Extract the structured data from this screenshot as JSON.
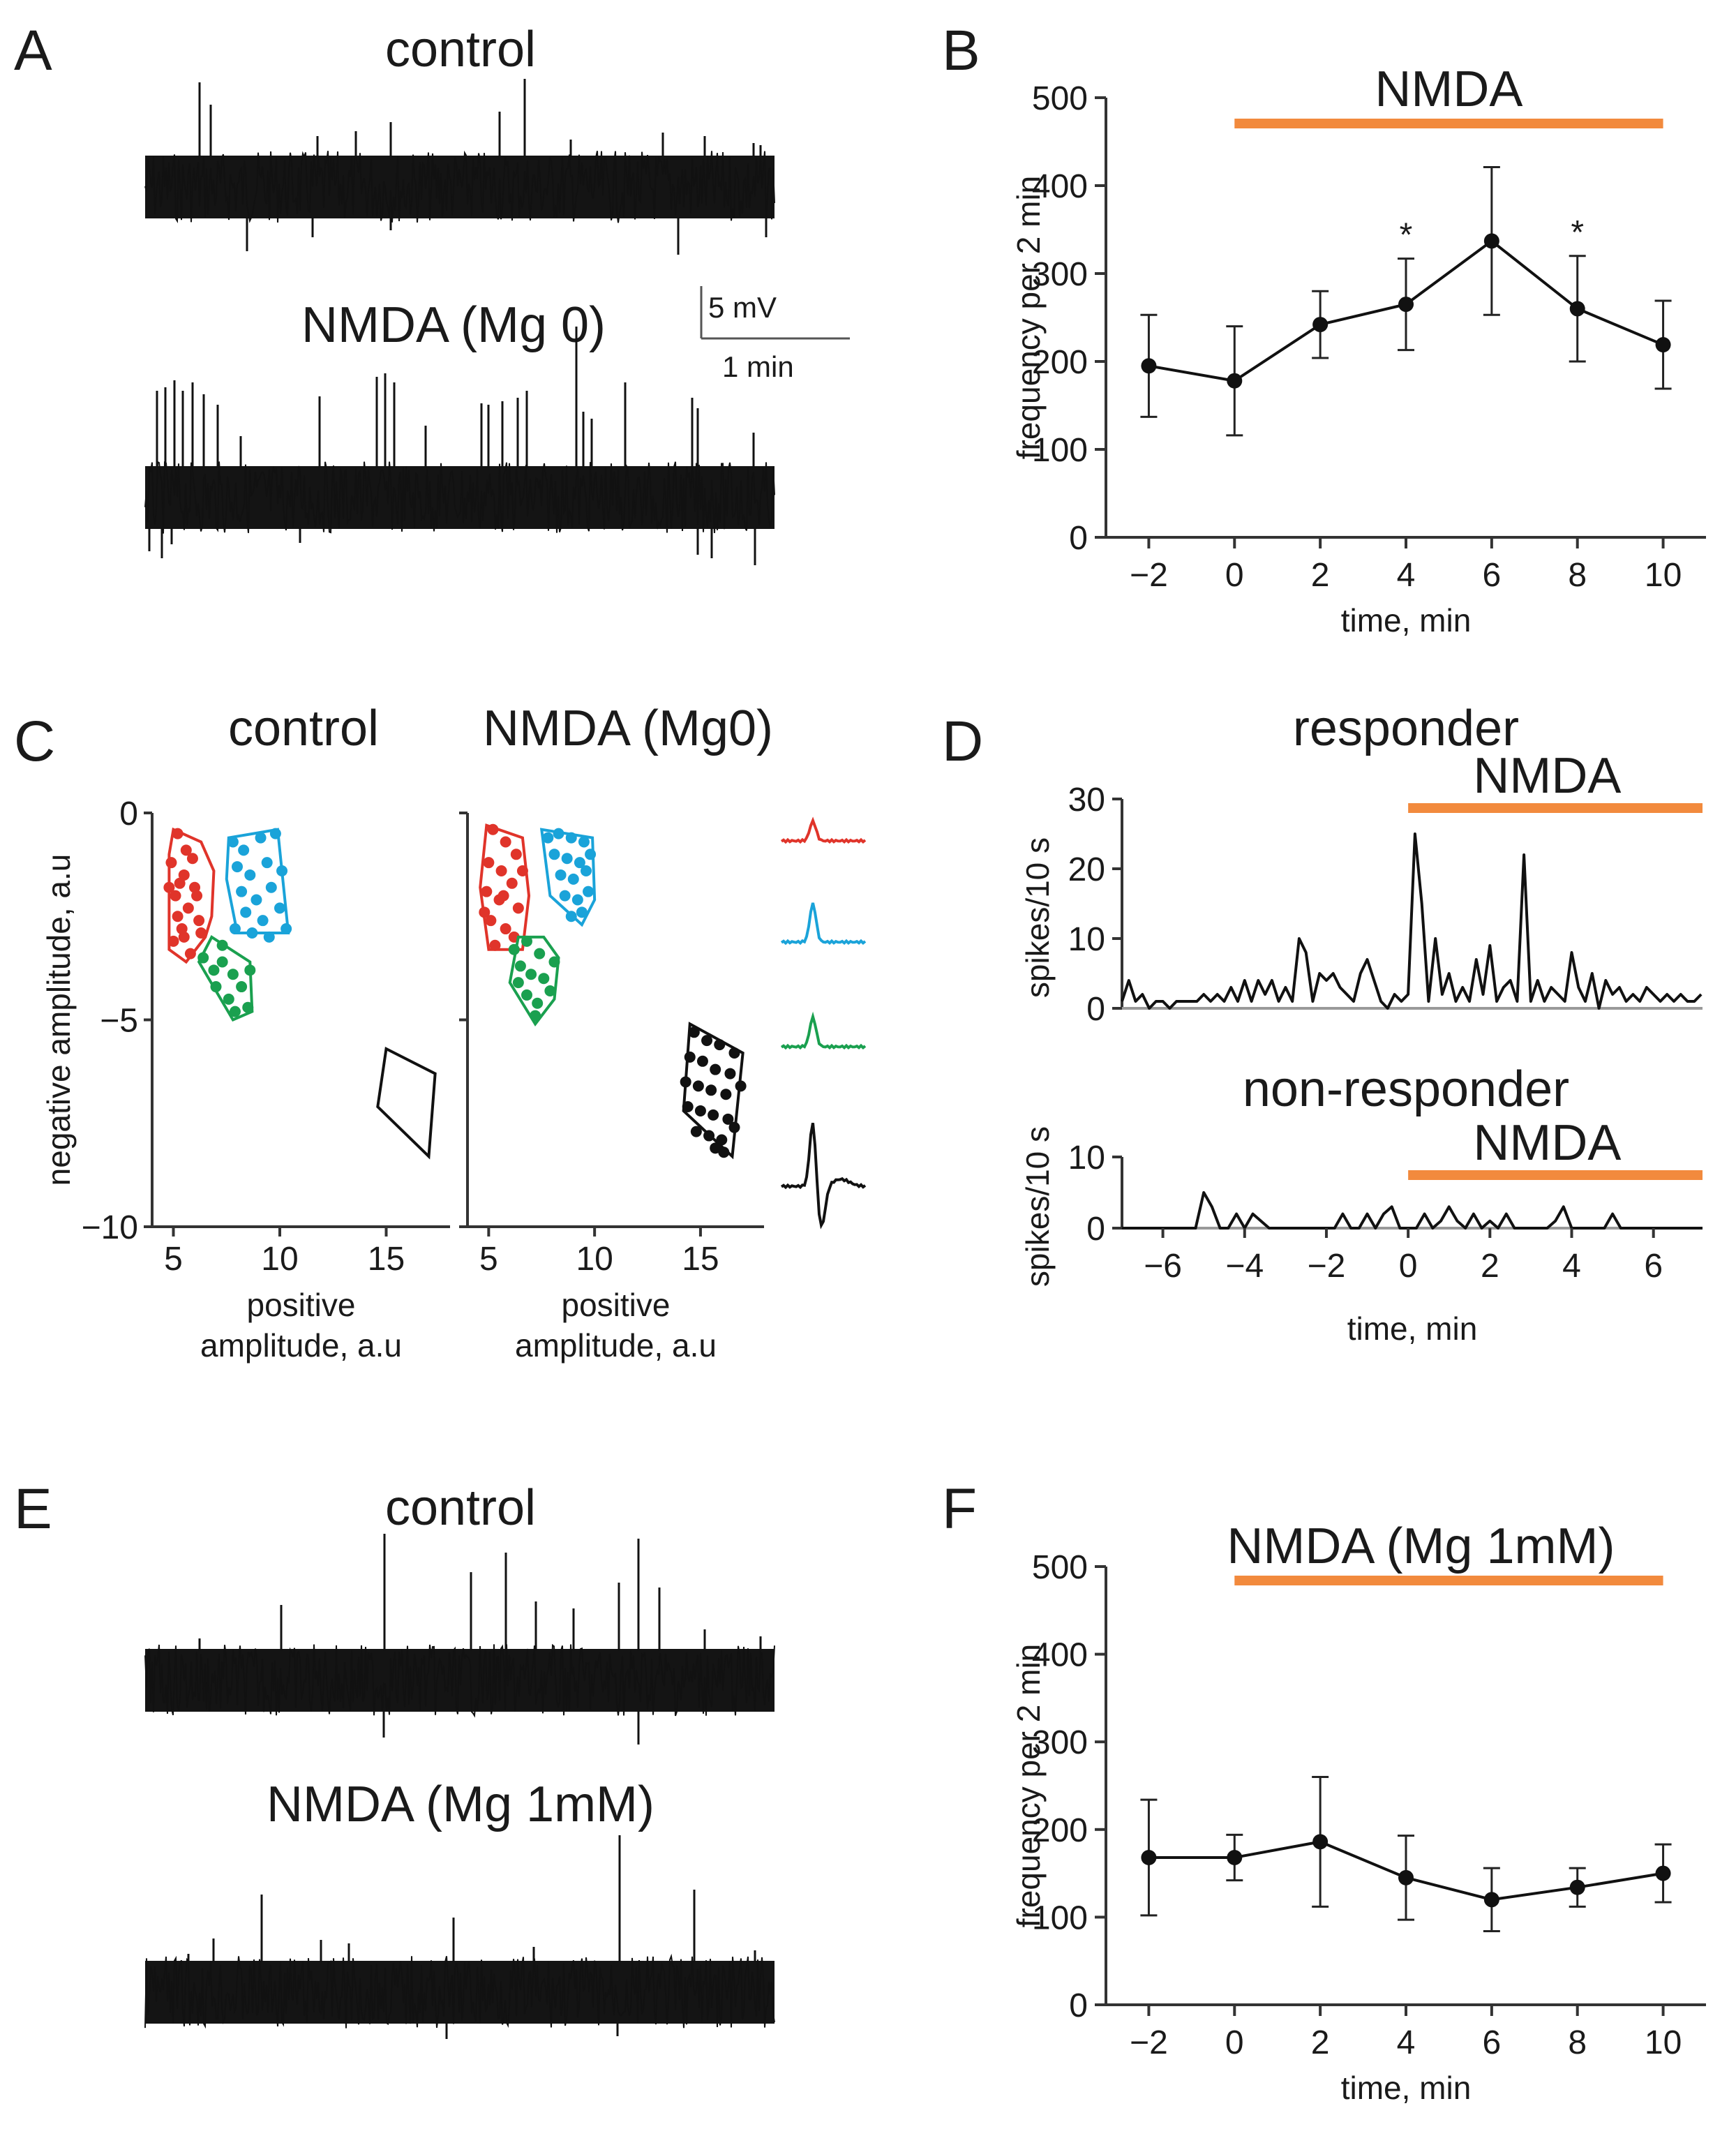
{
  "panels": {
    "A": {
      "letter": "A",
      "control_label": "control",
      "nmda_label": "NMDA (Mg 0)",
      "scale_v": "5 mV",
      "scale_t": "1 min"
    },
    "B": {
      "letter": "B"
    },
    "C": {
      "letter": "C",
      "control_label": "control",
      "nmda_label": "NMDA (Mg0)"
    },
    "D": {
      "letter": "D"
    },
    "E": {
      "letter": "E",
      "control_label": "control",
      "nmda_label": "NMDA (Mg 1mM)"
    },
    "F": {
      "letter": "F"
    }
  },
  "colors": {
    "nmda_bar": "#f28a3d",
    "red": "#e0342a",
    "blue": "#1aa3d9",
    "green": "#1aa04f",
    "black": "#111111"
  },
  "chart_data": [
    {
      "id": "B",
      "type": "line",
      "title": "NMDA",
      "bar_label": "NMDA",
      "bar_range": [
        0,
        10
      ],
      "x": [
        -2,
        0,
        2,
        4,
        6,
        8,
        10
      ],
      "y": [
        195,
        178,
        242,
        265,
        337,
        260,
        219
      ],
      "err": [
        58,
        62,
        38,
        52,
        84,
        60,
        50
      ],
      "significant": [
        "",
        "",
        "",
        "*",
        "",
        "*",
        ""
      ],
      "xticks": [
        "−2",
        "0",
        "2",
        "4",
        "6",
        "8",
        "10"
      ],
      "yticks": [
        "0",
        "100",
        "200",
        "300",
        "400",
        "500"
      ],
      "xlim": [
        -3,
        11
      ],
      "ylim": [
        0,
        500
      ],
      "xlabel": "time, min",
      "ylabel": "frequency per 2 min"
    },
    {
      "id": "C-control",
      "type": "scatter",
      "title": "control",
      "xticks": [
        "5",
        "10",
        "15"
      ],
      "yticks": [
        "0",
        "−5",
        "−10"
      ],
      "xlim": [
        4,
        18
      ],
      "ylim": [
        -10,
        0
      ],
      "xlabel": "positive amplitude, a.u",
      "ylabel": "negative amplitude, a.u",
      "clusters": [
        {
          "name": "red",
          "color": "#e0342a",
          "points": [
            [
              5.2,
              -0.5
            ],
            [
              5.6,
              -0.9
            ],
            [
              4.9,
              -1.2
            ],
            [
              5.5,
              -1.5
            ],
            [
              6.0,
              -1.8
            ],
            [
              5.1,
              -2.0
            ],
            [
              5.7,
              -2.3
            ],
            [
              6.2,
              -2.6
            ],
            [
              5.4,
              -2.8
            ],
            [
              5.0,
              -3.1
            ],
            [
              5.8,
              -3.4
            ],
            [
              6.1,
              -2.0
            ],
            [
              5.3,
              -1.7
            ],
            [
              5.9,
              -1.1
            ],
            [
              6.3,
              -2.9
            ],
            [
              5.5,
              -3.0
            ],
            [
              5.2,
              -2.5
            ],
            [
              4.8,
              -1.8
            ]
          ],
          "hull": [
            [
              5.0,
              -0.4
            ],
            [
              6.3,
              -0.7
            ],
            [
              6.9,
              -1.4
            ],
            [
              6.8,
              -2.5
            ],
            [
              6.5,
              -3.0
            ],
            [
              5.6,
              -3.6
            ],
            [
              4.8,
              -3.3
            ],
            [
              4.8,
              -1.0
            ]
          ]
        },
        {
          "name": "blue",
          "color": "#1aa3d9",
          "points": [
            [
              7.8,
              -0.7
            ],
            [
              8.3,
              -0.9
            ],
            [
              9.1,
              -0.6
            ],
            [
              9.8,
              -0.5
            ],
            [
              8.0,
              -1.3
            ],
            [
              8.6,
              -1.5
            ],
            [
              9.4,
              -1.2
            ],
            [
              10.1,
              -1.4
            ],
            [
              8.2,
              -1.9
            ],
            [
              8.9,
              -2.1
            ],
            [
              9.6,
              -1.8
            ],
            [
              8.4,
              -2.4
            ],
            [
              9.2,
              -2.6
            ],
            [
              10.0,
              -2.3
            ],
            [
              7.9,
              -2.8
            ],
            [
              8.7,
              -2.9
            ],
            [
              9.5,
              -3.0
            ],
            [
              10.3,
              -2.8
            ]
          ],
          "hull": [
            [
              7.6,
              -0.6
            ],
            [
              9.9,
              -0.4
            ],
            [
              10.4,
              -2.9
            ],
            [
              8.0,
              -2.9
            ],
            [
              7.5,
              -1.6
            ]
          ]
        },
        {
          "name": "green",
          "color": "#1aa04f",
          "points": [
            [
              6.4,
              -3.5
            ],
            [
              6.9,
              -3.8
            ],
            [
              7.3,
              -3.6
            ],
            [
              7.8,
              -3.9
            ],
            [
              7.0,
              -4.2
            ],
            [
              7.6,
              -4.5
            ],
            [
              8.2,
              -4.2
            ],
            [
              8.5,
              -4.7
            ],
            [
              7.9,
              -4.8
            ],
            [
              8.6,
              -3.8
            ],
            [
              7.3,
              -3.2
            ]
          ],
          "hull": [
            [
              6.8,
              -3.0
            ],
            [
              8.6,
              -3.6
            ],
            [
              8.7,
              -4.8
            ],
            [
              7.8,
              -5.0
            ],
            [
              6.2,
              -3.6
            ]
          ]
        },
        {
          "name": "black",
          "color": "#111111",
          "points": [],
          "hull": [
            [
              15.0,
              -5.7
            ],
            [
              17.3,
              -6.3
            ],
            [
              17.0,
              -8.3
            ],
            [
              14.6,
              -7.1
            ]
          ]
        }
      ]
    },
    {
      "id": "C-nmda",
      "type": "scatter",
      "title": "NMDA (Mg0)",
      "xticks": [
        "5",
        "10",
        "15"
      ],
      "yticks": [],
      "xlim": [
        4,
        18
      ],
      "ylim": [
        -10,
        0
      ],
      "xlabel": "positive amplitude, a.u",
      "ylabel": "",
      "clusters": [
        {
          "name": "red",
          "color": "#e0342a",
          "points": [
            [
              5.2,
              -0.4
            ],
            [
              5.8,
              -0.7
            ],
            [
              6.3,
              -1.0
            ],
            [
              5.0,
              -1.2
            ],
            [
              5.6,
              -1.4
            ],
            [
              6.1,
              -1.7
            ],
            [
              4.9,
              -1.9
            ],
            [
              5.5,
              -2.1
            ],
            [
              6.4,
              -2.3
            ],
            [
              5.1,
              -2.6
            ],
            [
              5.8,
              -2.8
            ],
            [
              6.2,
              -3.0
            ],
            [
              5.3,
              -3.2
            ],
            [
              6.6,
              -1.4
            ],
            [
              4.8,
              -2.4
            ],
            [
              5.7,
              -2.0
            ]
          ],
          "hull": [
            [
              4.9,
              -0.3
            ],
            [
              6.6,
              -0.6
            ],
            [
              6.9,
              -2.0
            ],
            [
              6.6,
              -3.3
            ],
            [
              5.0,
              -3.3
            ],
            [
              4.6,
              -1.8
            ]
          ]
        },
        {
          "name": "blue",
          "color": "#1aa3d9",
          "points": [
            [
              7.8,
              -0.6
            ],
            [
              8.3,
              -0.5
            ],
            [
              8.9,
              -0.6
            ],
            [
              9.5,
              -0.7
            ],
            [
              8.1,
              -1.0
            ],
            [
              8.7,
              -1.1
            ],
            [
              9.3,
              -1.2
            ],
            [
              9.8,
              -1.0
            ],
            [
              8.4,
              -1.5
            ],
            [
              9.0,
              -1.6
            ],
            [
              9.6,
              -1.4
            ],
            [
              8.6,
              -2.0
            ],
            [
              9.2,
              -2.1
            ],
            [
              9.7,
              -1.9
            ],
            [
              8.9,
              -2.5
            ],
            [
              9.4,
              -2.4
            ]
          ],
          "hull": [
            [
              7.5,
              -0.4
            ],
            [
              9.9,
              -0.6
            ],
            [
              10.0,
              -2.1
            ],
            [
              9.4,
              -2.7
            ],
            [
              7.9,
              -2.0
            ]
          ]
        },
        {
          "name": "green",
          "color": "#1aa04f",
          "points": [
            [
              6.2,
              -3.3
            ],
            [
              6.8,
              -3.1
            ],
            [
              7.4,
              -3.4
            ],
            [
              6.5,
              -3.7
            ],
            [
              7.0,
              -3.9
            ],
            [
              7.6,
              -4.0
            ],
            [
              6.8,
              -4.4
            ],
            [
              7.3,
              -4.6
            ],
            [
              7.9,
              -4.3
            ],
            [
              8.1,
              -3.6
            ],
            [
              7.2,
              -4.9
            ],
            [
              6.4,
              -4.1
            ]
          ],
          "hull": [
            [
              6.4,
              -3.0
            ],
            [
              7.6,
              -3.0
            ],
            [
              8.3,
              -3.5
            ],
            [
              8.1,
              -4.5
            ],
            [
              7.2,
              -5.1
            ],
            [
              6.0,
              -4.1
            ]
          ]
        },
        {
          "name": "black",
          "color": "#111111",
          "points": [
            [
              14.7,
              -5.3
            ],
            [
              15.3,
              -5.5
            ],
            [
              15.9,
              -5.6
            ],
            [
              16.6,
              -5.8
            ],
            [
              14.5,
              -5.9
            ],
            [
              15.1,
              -6.0
            ],
            [
              15.7,
              -6.2
            ],
            [
              16.4,
              -6.3
            ],
            [
              14.3,
              -6.5
            ],
            [
              14.9,
              -6.6
            ],
            [
              15.5,
              -6.7
            ],
            [
              16.2,
              -6.8
            ],
            [
              16.9,
              -6.6
            ],
            [
              14.4,
              -7.1
            ],
            [
              15.0,
              -7.2
            ],
            [
              15.6,
              -7.3
            ],
            [
              16.3,
              -7.4
            ],
            [
              14.8,
              -7.7
            ],
            [
              15.4,
              -7.8
            ],
            [
              16.0,
              -7.9
            ],
            [
              16.6,
              -7.6
            ],
            [
              15.7,
              -8.1
            ],
            [
              16.1,
              -8.2
            ]
          ],
          "hull": [
            [
              14.5,
              -5.1
            ],
            [
              17.0,
              -5.8
            ],
            [
              16.5,
              -8.3
            ],
            [
              14.2,
              -7.2
            ]
          ]
        }
      ],
      "waveforms": [
        "red",
        "blue",
        "green",
        "black"
      ]
    },
    {
      "id": "D-responder",
      "type": "line",
      "title": "responder",
      "bar_label": "NMDA",
      "bar_range": [
        0,
        7.2
      ],
      "x": [
        -7.0,
        -6.833,
        -6.667,
        -6.5,
        -6.333,
        -6.167,
        -6.0,
        -5.833,
        -5.667,
        -5.5,
        -5.333,
        -5.167,
        -5.0,
        -4.833,
        -4.667,
        -4.5,
        -4.333,
        -4.167,
        -4.0,
        -3.833,
        -3.667,
        -3.5,
        -3.333,
        -3.167,
        -3.0,
        -2.833,
        -2.667,
        -2.5,
        -2.333,
        -2.167,
        -2.0,
        -1.833,
        -1.667,
        -1.5,
        -1.333,
        -1.167,
        -1.0,
        -0.833,
        -0.667,
        -0.5,
        -0.333,
        -0.167,
        0.0,
        0.167,
        0.333,
        0.5,
        0.667,
        0.833,
        1.0,
        1.167,
        1.333,
        1.5,
        1.667,
        1.833,
        2.0,
        2.167,
        2.333,
        2.5,
        2.667,
        2.833,
        3.0,
        3.167,
        3.333,
        3.5,
        3.667,
        3.833,
        4.0,
        4.167,
        4.333,
        4.5,
        4.667,
        4.833,
        5.0,
        5.167,
        5.333,
        5.5,
        5.667,
        5.833,
        6.0,
        6.167,
        6.333,
        6.5,
        6.667,
        6.833,
        7.0,
        7.167
      ],
      "y": [
        1,
        4,
        1,
        2,
        0,
        1,
        1,
        0,
        1,
        1,
        1,
        1,
        2,
        1,
        2,
        1,
        3,
        1,
        4,
        1,
        4,
        2,
        4,
        1,
        3,
        1,
        10,
        8,
        1,
        5,
        4,
        5,
        3,
        2,
        1,
        5,
        7,
        4,
        1,
        0,
        2,
        1,
        2,
        25,
        15,
        1,
        10,
        2,
        5,
        1,
        3,
        1,
        7,
        2,
        9,
        1,
        3,
        4,
        1,
        22,
        1,
        4,
        1,
        3,
        2,
        1,
        8,
        3,
        1,
        5,
        0,
        4,
        2,
        3,
        1,
        2,
        1,
        3,
        2,
        1,
        2,
        1,
        2,
        1,
        1,
        2
      ],
      "yticks": [
        "0",
        "10",
        "20",
        "30"
      ],
      "xlim": [
        -7,
        7.2
      ],
      "ylim": [
        0,
        30
      ],
      "xlabel": "",
      "ylabel": "spikes/10 s"
    },
    {
      "id": "D-non-responder",
      "type": "line",
      "title": "non-responder",
      "bar_label": "NMDA",
      "bar_range": [
        0,
        7.2
      ],
      "x": [
        -7.0,
        -6.6,
        -6.2,
        -5.8,
        -5.4,
        -5.2,
        -5.0,
        -4.8,
        -4.6,
        -4.4,
        -4.2,
        -4.0,
        -3.8,
        -3.4,
        -3.0,
        -2.6,
        -2.2,
        -1.8,
        -1.6,
        -1.4,
        -1.2,
        -1.0,
        -0.8,
        -0.6,
        -0.4,
        -0.2,
        0.0,
        0.2,
        0.4,
        0.6,
        0.8,
        1.0,
        1.2,
        1.4,
        1.6,
        1.8,
        2.0,
        2.2,
        2.4,
        2.6,
        2.8,
        3.0,
        3.2,
        3.4,
        3.6,
        3.8,
        4.0,
        4.2,
        4.4,
        4.6,
        4.8,
        5.0,
        5.2,
        5.4,
        5.6,
        6.0,
        6.4,
        6.8,
        7.2
      ],
      "y": [
        0,
        0,
        0,
        0,
        0,
        0,
        5,
        3,
        0,
        0,
        2,
        0,
        2,
        0,
        0,
        0,
        0,
        0,
        2,
        0,
        0,
        2,
        0,
        2,
        3,
        0,
        0,
        0,
        2,
        0,
        1,
        3,
        1,
        0,
        2,
        0,
        1,
        0,
        2,
        0,
        0,
        0,
        0,
        0,
        1,
        3,
        0,
        0,
        0,
        0,
        0,
        2,
        0,
        0,
        0,
        0,
        0,
        0,
        0
      ],
      "yticks": [
        "0",
        "10"
      ],
      "xticks": [
        "−6",
        "−4",
        "−2",
        "0",
        "2",
        "4",
        "6"
      ],
      "xlim": [
        -7,
        7.2
      ],
      "ylim": [
        0,
        10
      ],
      "xlabel": "time, min",
      "ylabel": "spikes/10 s"
    },
    {
      "id": "F",
      "type": "line",
      "title": "NMDA (Mg 1mM)",
      "bar_label": "NMDA (Mg 1mM)",
      "bar_range": [
        0,
        10
      ],
      "x": [
        -2,
        0,
        2,
        4,
        6,
        8,
        10
      ],
      "y": [
        168,
        168,
        186,
        145,
        120,
        134,
        150
      ],
      "err": [
        66,
        26,
        74,
        48,
        36,
        22,
        33
      ],
      "xticks": [
        "−2",
        "0",
        "2",
        "4",
        "6",
        "8",
        "10"
      ],
      "yticks": [
        "0",
        "100",
        "200",
        "300",
        "400",
        "500"
      ],
      "xlim": [
        -3,
        11
      ],
      "ylim": [
        0,
        500
      ],
      "xlabel": "time, min",
      "ylabel": "frequency per 2 min"
    }
  ]
}
